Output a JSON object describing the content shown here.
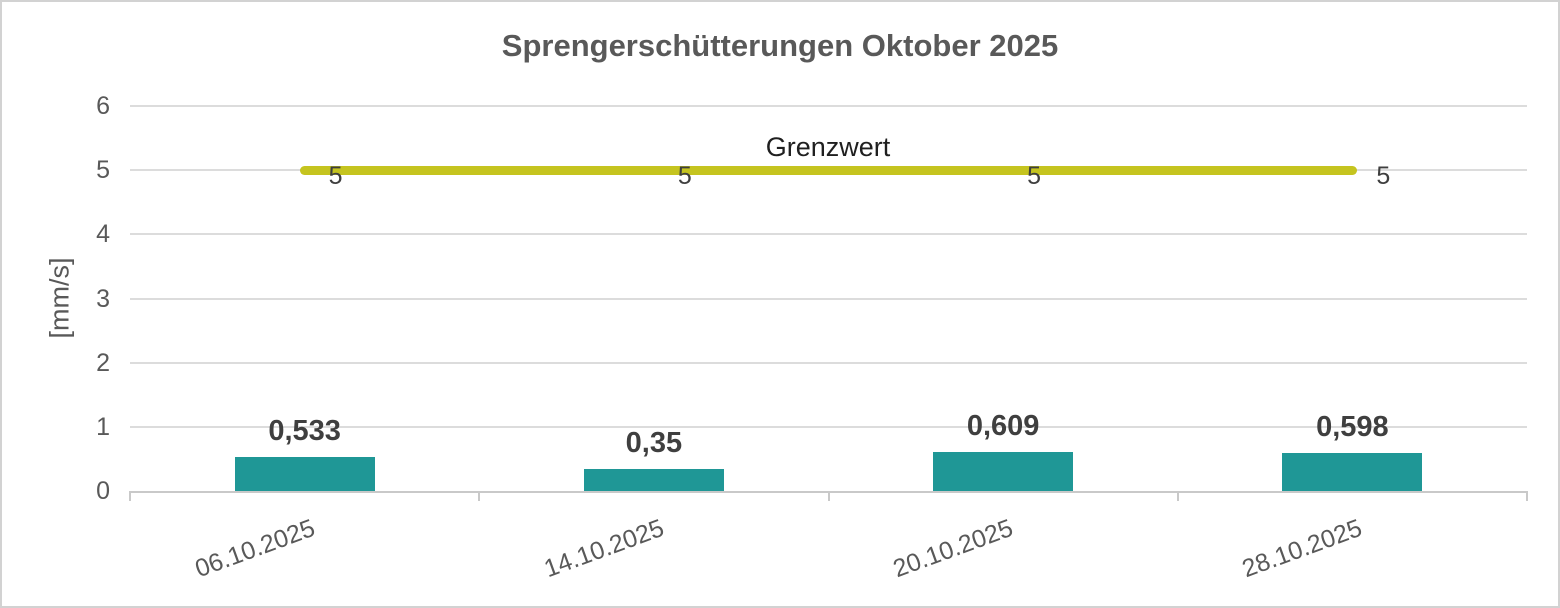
{
  "window": {
    "background": "#FFFFFF",
    "border_color": "#D2D2D2"
  },
  "chart_data": {
    "type": "bar",
    "title": "Sprengerschütterungen Oktober 2025",
    "categories": [
      "06.10.2025",
      "14.10.2025",
      "20.10.2025",
      "28.10.2025"
    ],
    "bars": {
      "values": [
        0.533,
        0.35,
        0.609,
        0.598
      ],
      "labels": [
        "0,533",
        "0,35",
        "0,609",
        "0,598"
      ],
      "color": "#1F9796"
    },
    "limit_line": {
      "label": "Grenzwert",
      "value": 5,
      "values": [
        5,
        5,
        5,
        5
      ],
      "point_labels": [
        "5",
        "5",
        "5",
        "5"
      ],
      "color": "#C5C41F"
    },
    "ylabel": "[mm/s]",
    "ytick_labels": [
      "0",
      "1",
      "2",
      "3",
      "4",
      "5",
      "6"
    ],
    "ylim": [
      0,
      6
    ],
    "grid": true,
    "legend_position": "none",
    "gridline_color": "#DCDCDC",
    "axis_color": "#C9C9C9",
    "text_colors": {
      "title": "#595959",
      "axis": "#595959",
      "bar_label": "#3F3F3F",
      "series_label": "#1F1F1F"
    }
  }
}
